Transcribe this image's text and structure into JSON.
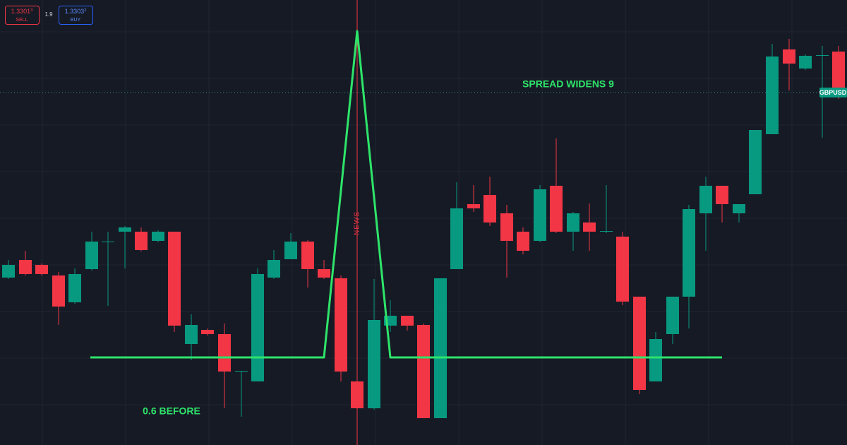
{
  "order_panel": {
    "sell": {
      "price": "1.3301",
      "price_sup": "3",
      "label": "SELL"
    },
    "spread": "1.9",
    "buy": {
      "price": "1.3303",
      "price_sup": "2",
      "label": "BUY"
    }
  },
  "annotations": {
    "news": "NEWS",
    "spread_after": "SPREAD WIDENS 9",
    "spread_before": "0.6 BEFORE"
  },
  "symbol_label": "GBPUSD"
}
